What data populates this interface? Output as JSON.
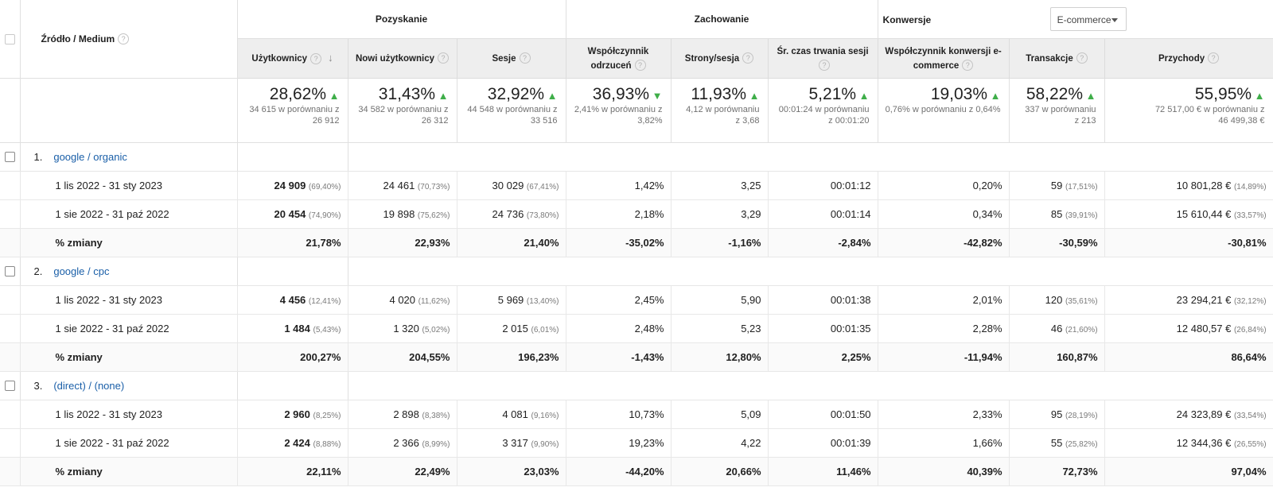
{
  "header": {
    "dimension_label": "Źródło / Medium",
    "groups": {
      "acquisition": "Pozyskanie",
      "behavior": "Zachowanie",
      "conversions": "Konwersje"
    },
    "conversion_select": "E-commerce",
    "columns": [
      "Użytkownicy",
      "Nowi użytkownicy",
      "Sesje",
      "Współczynnik odrzuceń",
      "Strony/sesja",
      "Śr. czas trwania sesji",
      "Współczynnik konwersji e-commerce",
      "Transakcje",
      "Przychody"
    ]
  },
  "totals": [
    {
      "pct": "28,62%",
      "dir": "up",
      "sub1": "34 615 w porównaniu z",
      "sub2": "26 912"
    },
    {
      "pct": "31,43%",
      "dir": "up",
      "sub1": "34 582 w porównaniu z",
      "sub2": "26 312"
    },
    {
      "pct": "32,92%",
      "dir": "up",
      "sub1": "44 548 w porównaniu z",
      "sub2": "33 516"
    },
    {
      "pct": "36,93%",
      "dir": "down",
      "sub1": "2,41% w porównaniu z",
      "sub2": "3,82%"
    },
    {
      "pct": "11,93%",
      "dir": "up",
      "sub1": "4,12 w porównaniu",
      "sub2": "z 3,68"
    },
    {
      "pct": "5,21%",
      "dir": "up",
      "sub1": "00:01:24 w porównaniu",
      "sub2": "z 00:01:20"
    },
    {
      "pct": "19,03%",
      "dir": "up",
      "sub1": "0,76% w porównaniu z 0,64%",
      "sub2": ""
    },
    {
      "pct": "58,22%",
      "dir": "up",
      "sub1": "337 w porównaniu",
      "sub2": "z 213"
    },
    {
      "pct": "55,95%",
      "dir": "up",
      "sub1": "72 517,00 € w porównaniu z",
      "sub2": "46 499,38 €"
    }
  ],
  "sources": [
    {
      "num": "1.",
      "name": "google / organic",
      "rows": [
        {
          "label": "1 lis 2022 - 31 sty 2023",
          "cells": [
            {
              "v": "24 909",
              "s": "(69,40%)"
            },
            {
              "v": "24 461",
              "s": "(70,73%)"
            },
            {
              "v": "30 029",
              "s": "(67,41%)"
            },
            {
              "v": "1,42%",
              "s": ""
            },
            {
              "v": "3,25",
              "s": ""
            },
            {
              "v": "00:01:12",
              "s": ""
            },
            {
              "v": "0,20%",
              "s": ""
            },
            {
              "v": "59",
              "s": "(17,51%)"
            },
            {
              "v": "10 801,28 €",
              "s": "(14,89%)"
            }
          ]
        },
        {
          "label": "1 sie 2022 - 31 paź 2022",
          "cells": [
            {
              "v": "20 454",
              "s": "(74,90%)"
            },
            {
              "v": "19 898",
              "s": "(75,62%)"
            },
            {
              "v": "24 736",
              "s": "(73,80%)"
            },
            {
              "v": "2,18%",
              "s": ""
            },
            {
              "v": "3,29",
              "s": ""
            },
            {
              "v": "00:01:14",
              "s": ""
            },
            {
              "v": "0,34%",
              "s": ""
            },
            {
              "v": "85",
              "s": "(39,91%)"
            },
            {
              "v": "15 610,44 €",
              "s": "(33,57%)"
            }
          ]
        },
        {
          "label": "% zmiany",
          "change": true,
          "cells": [
            {
              "v": "21,78%",
              "s": ""
            },
            {
              "v": "22,93%",
              "s": ""
            },
            {
              "v": "21,40%",
              "s": ""
            },
            {
              "v": "-35,02%",
              "s": ""
            },
            {
              "v": "-1,16%",
              "s": ""
            },
            {
              "v": "-2,84%",
              "s": ""
            },
            {
              "v": "-42,82%",
              "s": ""
            },
            {
              "v": "-30,59%",
              "s": ""
            },
            {
              "v": "-30,81%",
              "s": ""
            }
          ]
        }
      ]
    },
    {
      "num": "2.",
      "name": "google / cpc",
      "rows": [
        {
          "label": "1 lis 2022 - 31 sty 2023",
          "cells": [
            {
              "v": "4 456",
              "s": "(12,41%)"
            },
            {
              "v": "4 020",
              "s": "(11,62%)"
            },
            {
              "v": "5 969",
              "s": "(13,40%)"
            },
            {
              "v": "2,45%",
              "s": ""
            },
            {
              "v": "5,90",
              "s": ""
            },
            {
              "v": "00:01:38",
              "s": ""
            },
            {
              "v": "2,01%",
              "s": ""
            },
            {
              "v": "120",
              "s": "(35,61%)"
            },
            {
              "v": "23 294,21 €",
              "s": "(32,12%)"
            }
          ]
        },
        {
          "label": "1 sie 2022 - 31 paź 2022",
          "cells": [
            {
              "v": "1 484",
              "s": "(5,43%)"
            },
            {
              "v": "1 320",
              "s": "(5,02%)"
            },
            {
              "v": "2 015",
              "s": "(6,01%)"
            },
            {
              "v": "2,48%",
              "s": ""
            },
            {
              "v": "5,23",
              "s": ""
            },
            {
              "v": "00:01:35",
              "s": ""
            },
            {
              "v": "2,28%",
              "s": ""
            },
            {
              "v": "46",
              "s": "(21,60%)"
            },
            {
              "v": "12 480,57 €",
              "s": "(26,84%)"
            }
          ]
        },
        {
          "label": "% zmiany",
          "change": true,
          "cells": [
            {
              "v": "200,27%",
              "s": ""
            },
            {
              "v": "204,55%",
              "s": ""
            },
            {
              "v": "196,23%",
              "s": ""
            },
            {
              "v": "-1,43%",
              "s": ""
            },
            {
              "v": "12,80%",
              "s": ""
            },
            {
              "v": "2,25%",
              "s": ""
            },
            {
              "v": "-11,94%",
              "s": ""
            },
            {
              "v": "160,87%",
              "s": ""
            },
            {
              "v": "86,64%",
              "s": ""
            }
          ]
        }
      ]
    },
    {
      "num": "3.",
      "name": "(direct) / (none)",
      "rows": [
        {
          "label": "1 lis 2022 - 31 sty 2023",
          "cells": [
            {
              "v": "2 960",
              "s": "(8,25%)"
            },
            {
              "v": "2 898",
              "s": "(8,38%)"
            },
            {
              "v": "4 081",
              "s": "(9,16%)"
            },
            {
              "v": "10,73%",
              "s": ""
            },
            {
              "v": "5,09",
              "s": ""
            },
            {
              "v": "00:01:50",
              "s": ""
            },
            {
              "v": "2,33%",
              "s": ""
            },
            {
              "v": "95",
              "s": "(28,19%)"
            },
            {
              "v": "24 323,89 €",
              "s": "(33,54%)"
            }
          ]
        },
        {
          "label": "1 sie 2022 - 31 paź 2022",
          "cells": [
            {
              "v": "2 424",
              "s": "(8,88%)"
            },
            {
              "v": "2 366",
              "s": "(8,99%)"
            },
            {
              "v": "3 317",
              "s": "(9,90%)"
            },
            {
              "v": "19,23%",
              "s": ""
            },
            {
              "v": "4,22",
              "s": ""
            },
            {
              "v": "00:01:39",
              "s": ""
            },
            {
              "v": "1,66%",
              "s": ""
            },
            {
              "v": "55",
              "s": "(25,82%)"
            },
            {
              "v": "12 344,36 €",
              "s": "(26,55%)"
            }
          ]
        },
        {
          "label": "% zmiany",
          "change": true,
          "cells": [
            {
              "v": "22,11%",
              "s": ""
            },
            {
              "v": "22,49%",
              "s": ""
            },
            {
              "v": "23,03%",
              "s": ""
            },
            {
              "v": "-44,20%",
              "s": ""
            },
            {
              "v": "20,66%",
              "s": ""
            },
            {
              "v": "11,46%",
              "s": ""
            },
            {
              "v": "40,39%",
              "s": ""
            },
            {
              "v": "72,73%",
              "s": ""
            },
            {
              "v": "97,04%",
              "s": ""
            }
          ]
        }
      ]
    }
  ]
}
